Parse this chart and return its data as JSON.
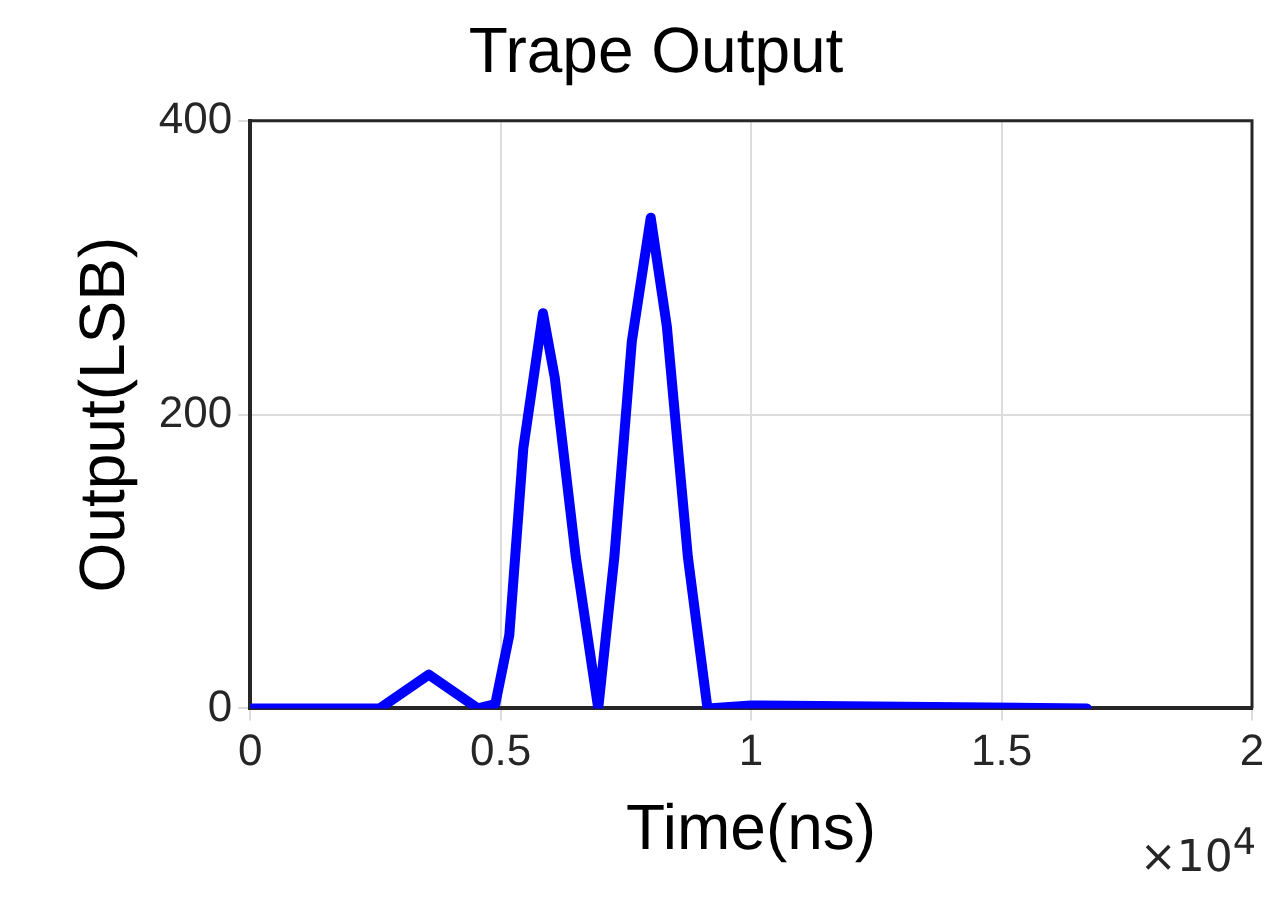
{
  "chart_data": {
    "type": "line",
    "title": "Trape Output",
    "xlabel": "Time(ns)",
    "ylabel": "Output(LSB)",
    "series": [
      {
        "color": "#0000ff",
        "x": [
          0,
          0.2586,
          0.3565,
          0.4544,
          0.4893,
          0.5173,
          0.5452,
          0.5844,
          0.6081,
          0.65,
          0.6948,
          0.727,
          0.7619,
          0.7996,
          0.8318,
          0.8738,
          0.9129,
          1.0,
          1.6706
        ],
        "values": [
          0,
          0,
          23,
          0,
          3,
          50,
          177,
          269,
          225,
          103,
          0,
          103,
          250,
          334,
          260,
          103,
          0,
          2,
          0
        ]
      }
    ],
    "xlim": [
      0,
      2
    ],
    "xticks": [
      0,
      0.5,
      1,
      1.5,
      2
    ],
    "ylim": [
      0,
      400
    ],
    "yticks": [
      0,
      200,
      400
    ],
    "grid": true,
    "legend": false,
    "line_style": "solid",
    "annotations": [
      "×10$^{4}$"
    ]
  }
}
